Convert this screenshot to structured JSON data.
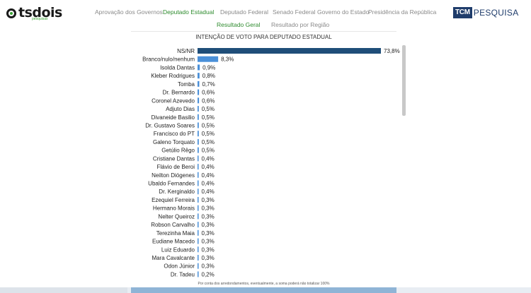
{
  "header": {
    "logo_text": "tsdois",
    "logo_sub": "pesquisas",
    "brand_badge": "TCM",
    "brand_text": "PESQUISA",
    "nav": [
      {
        "label": "Aprovação dos Governos",
        "active": false
      },
      {
        "label": "Deputado Estadual",
        "active": true
      },
      {
        "label": "Deputado Federal",
        "active": false
      },
      {
        "label": "Senado Federal",
        "active": false
      },
      {
        "label": "Governo do Estado",
        "active": false
      },
      {
        "label": "Presidência da República",
        "active": false
      }
    ],
    "subnav": [
      {
        "label": "Resultado Geral",
        "active": true
      },
      {
        "label": "Resultado por Região",
        "active": false
      }
    ]
  },
  "chart_data": {
    "type": "bar",
    "orientation": "horizontal",
    "title": "INTENÇÃO DE VOTO PARA DEPUTADO ESTADUAL",
    "categories": [
      "NS/NR",
      "Branco/nulo/nenhum",
      "Isolda Dantas",
      "Kleber Rodrigues",
      "Tomba",
      "Dr. Bernardo",
      "Coronel Azevedo",
      "Adjuto Dias",
      "Divaneide Basilio",
      "Dr. Gustavo Soares",
      "Francisco do PT",
      "Galeno Torquato",
      "Getúlio Rêgo",
      "Cristiane Dantas",
      "Flávio de Beroi",
      "Neilton Diógenes",
      "Ubaldo Fernandes",
      "Dr. Kerginaldo",
      "Ezequiel Ferreira",
      "Hermano Morais",
      "Nelter Queiroz",
      "Robson Carvalho",
      "Terezinha Maia",
      "Eudiane Macedo",
      "Luiz Eduardo",
      "Mara Cavalcante",
      "Odon Júnior",
      "Dr. Tadeu"
    ],
    "values": [
      73.8,
      8.3,
      0.9,
      0.8,
      0.7,
      0.6,
      0.6,
      0.5,
      0.5,
      0.5,
      0.5,
      0.5,
      0.5,
      0.4,
      0.4,
      0.4,
      0.4,
      0.4,
      0.3,
      0.3,
      0.3,
      0.3,
      0.3,
      0.3,
      0.3,
      0.3,
      0.3,
      0.2
    ],
    "value_labels": [
      "73,8%",
      "8,3%",
      "0,9%",
      "0,8%",
      "0,7%",
      "0,6%",
      "0,6%",
      "0,5%",
      "0,5%",
      "0,5%",
      "0,5%",
      "0,5%",
      "0,5%",
      "0,4%",
      "0,4%",
      "0,4%",
      "0,4%",
      "0,4%",
      "0,3%",
      "0,3%",
      "0,3%",
      "0,3%",
      "0,3%",
      "0,3%",
      "0,3%",
      "0,3%",
      "0,3%",
      "0,2%"
    ],
    "xlim": [
      0,
      73.8
    ],
    "colors": {
      "top": "#1f4e79",
      "second": "#4a90d9",
      "rest": "#4a90d9"
    },
    "footnote": "Por conta dos arredondamentos, eventualmente, a soma poderá não totalizar 100%"
  }
}
